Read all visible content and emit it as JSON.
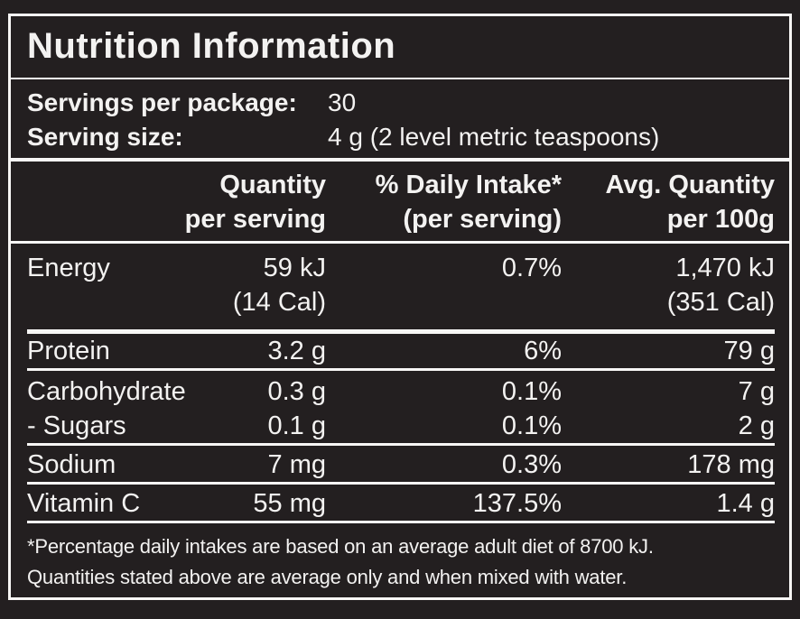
{
  "colors": {
    "background": "#231f20",
    "text": "#f3f2f1",
    "rule_lines": "#f7f6f5"
  },
  "title": "Nutrition Information",
  "serving_info": {
    "servings_label": "Servings per package:",
    "servings_value": "30",
    "size_label": "Serving size:",
    "size_value": "4 g (2 level metric teaspoons)"
  },
  "table": {
    "headers": {
      "quantity_per_serving": "Quantity\nper serving",
      "daily_intake": "% Daily Intake*\n(per serving)",
      "avg_quantity_per_100g": "Avg. Quantity\nper 100g"
    },
    "rows": [
      {
        "name": "Energy",
        "qty": "59 kJ\n(14 Cal)",
        "di": "0.7%",
        "avg": "1,470 kJ\n(351 Cal)"
      },
      {
        "name": "Protein",
        "qty": "3.2 g",
        "di": "6%",
        "avg": "79 g"
      },
      {
        "name": "Carbohydrate",
        "qty": "0.3 g",
        "di": "0.1%",
        "avg": "7 g"
      },
      {
        "name": "- Sugars",
        "qty": "0.1 g",
        "di": "0.1%",
        "avg": "2 g"
      },
      {
        "name": "Sodium",
        "qty": "7 mg",
        "di": "0.3%",
        "avg": "178 mg"
      },
      {
        "name": "Vitamin C",
        "qty": "55 mg",
        "di": "137.5%",
        "avg": "1.4 g"
      }
    ]
  },
  "footnote": "*Percentage daily intakes are based on an average adult diet of 8700 kJ.\nQuantities stated above are average only and when mixed with water."
}
